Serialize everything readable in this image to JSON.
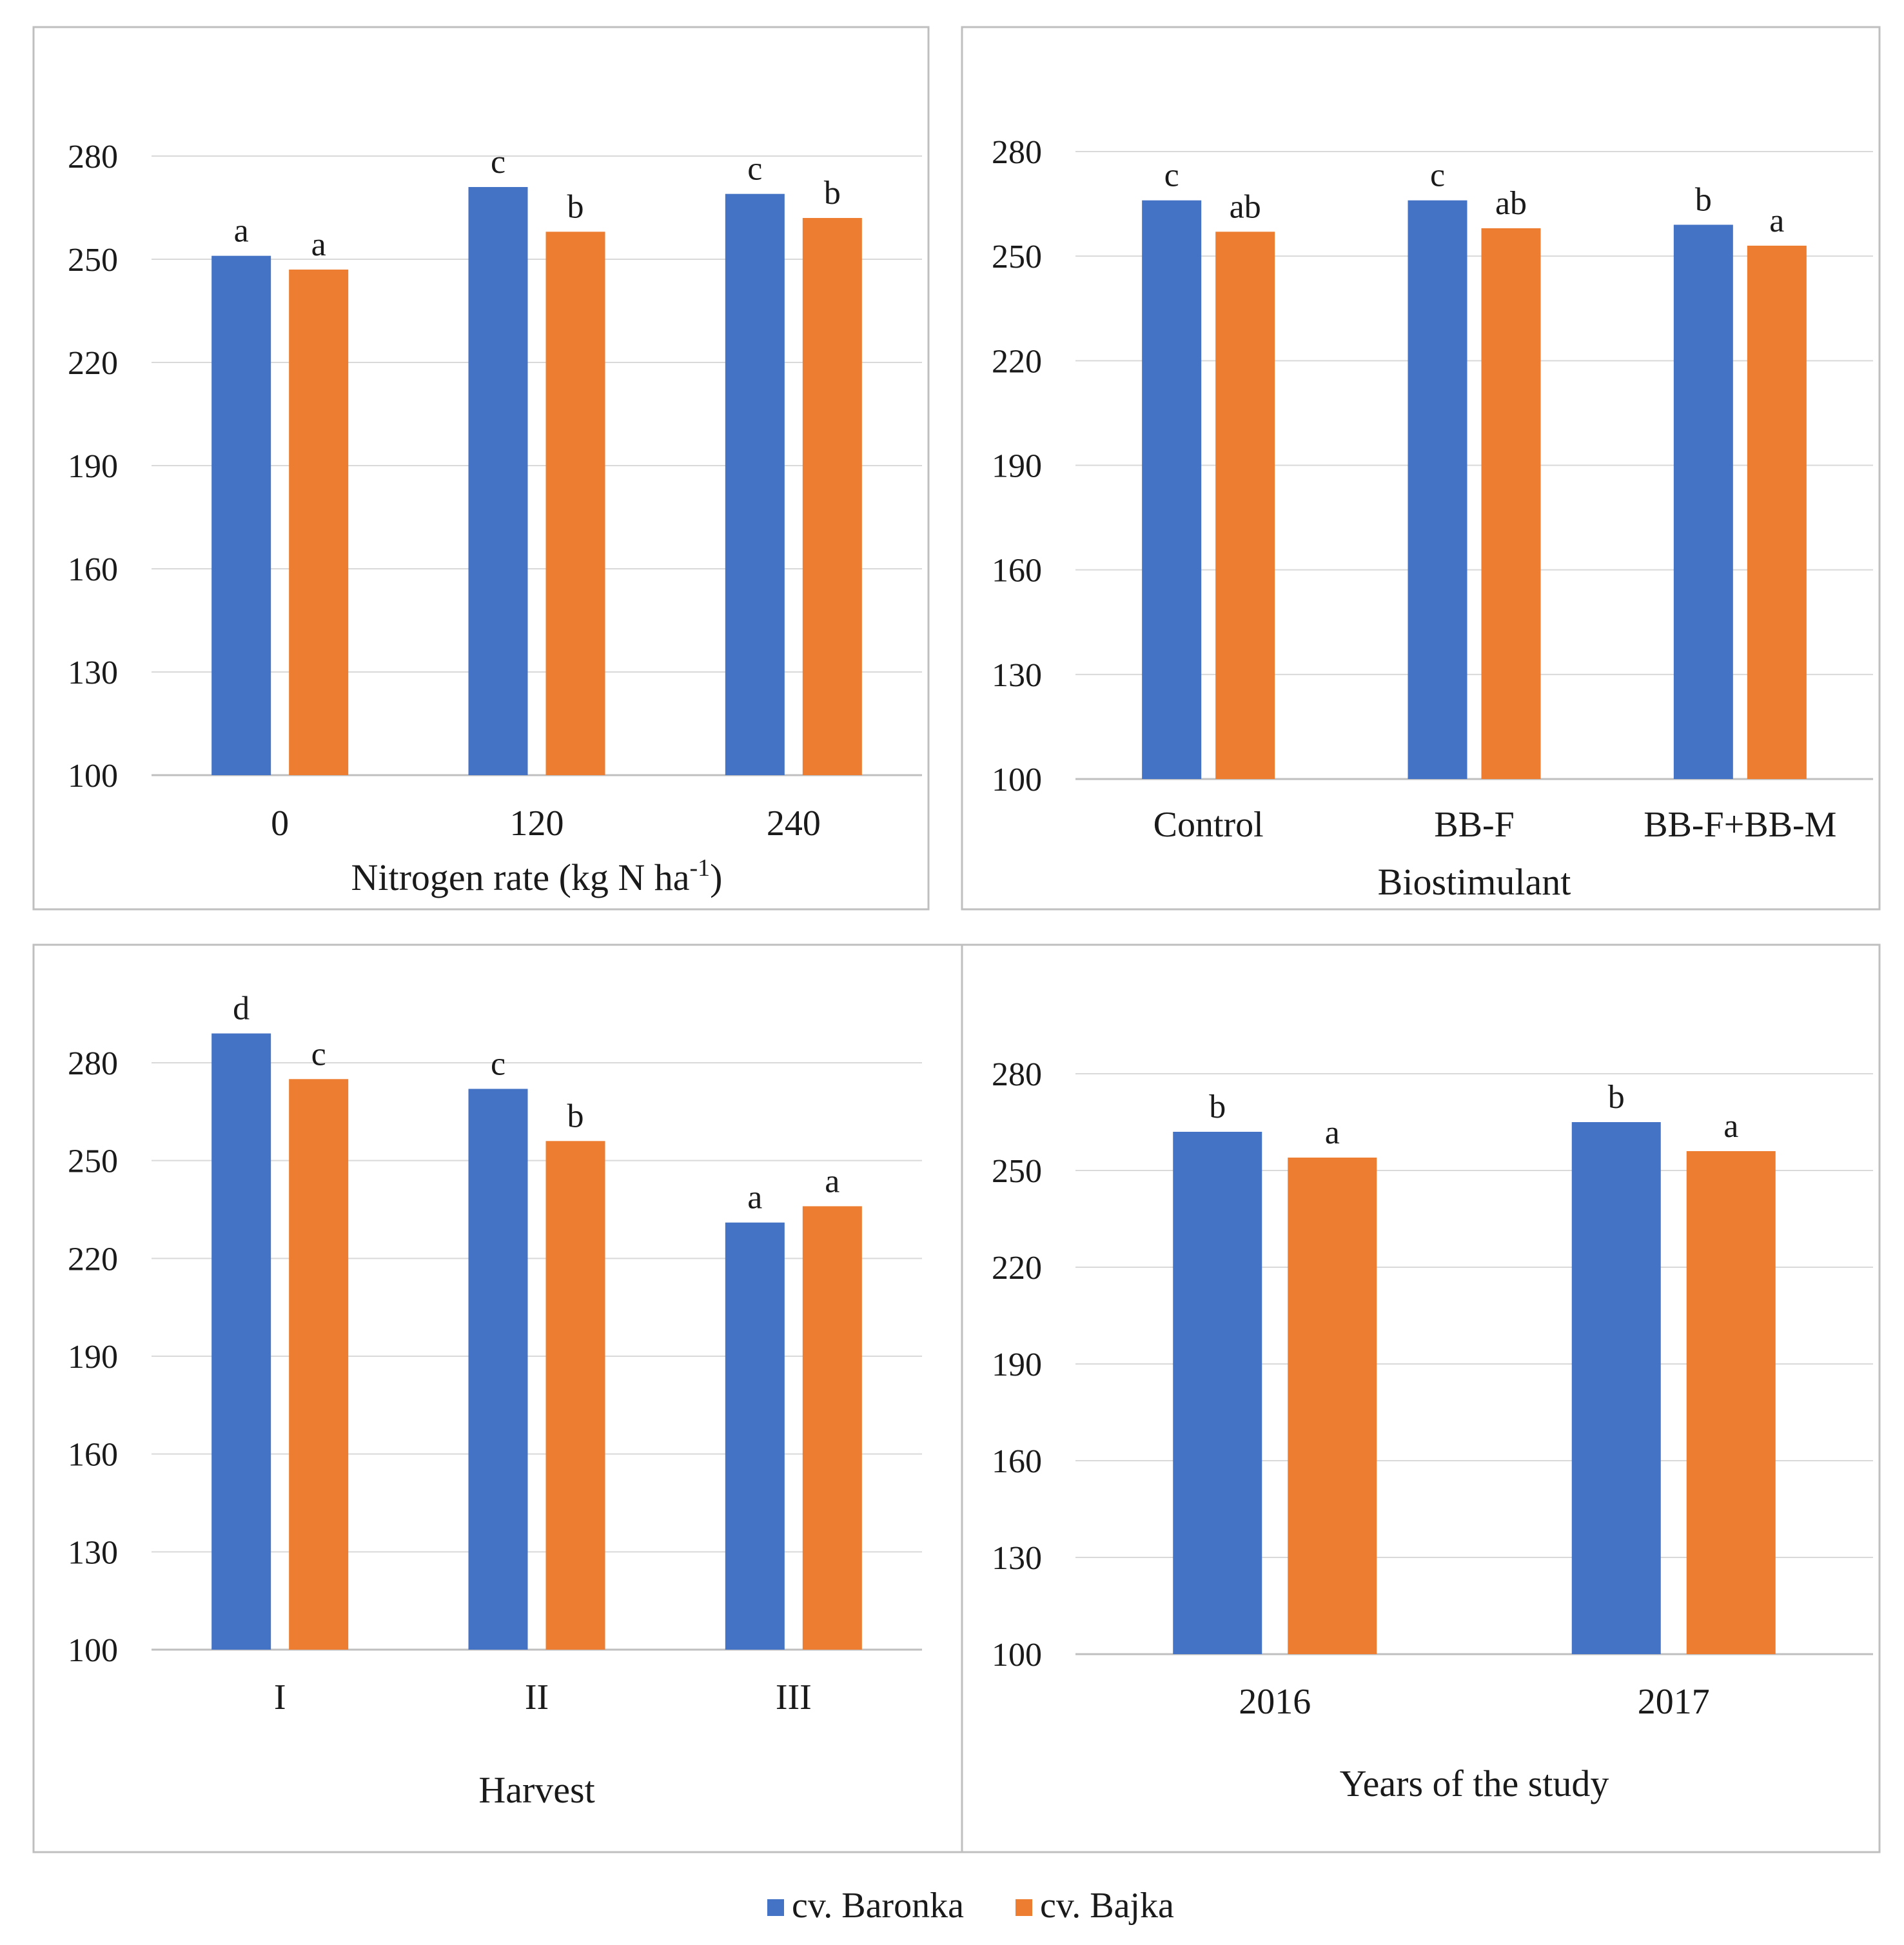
{
  "colors": {
    "baronka": "#4472c4",
    "bajka": "#ed7d31",
    "grid": "#d9d9d9",
    "frame": "#bfbfbf"
  },
  "legend": [
    {
      "name": "cv. Baronka",
      "color": "#4472c4"
    },
    {
      "name": "cv. Bajka",
      "color": "#ed7d31"
    }
  ],
  "chart_data": [
    {
      "type": "bar",
      "xlabel": "Nitrogen rate (kg N ha",
      "xlabel_sup": "-1",
      "xlabel_tail": ")",
      "ylim": [
        100,
        280
      ],
      "yticks": [
        100,
        130,
        160,
        190,
        220,
        250,
        280
      ],
      "categories": [
        "0",
        "120",
        "240"
      ],
      "series": [
        {
          "name": "cv. Baronka",
          "values": [
            251,
            271,
            269
          ],
          "labels": [
            "a",
            "c",
            "c"
          ]
        },
        {
          "name": "cv. Bajka",
          "values": [
            247,
            258,
            262
          ],
          "labels": [
            "a",
            "b",
            "b"
          ]
        }
      ]
    },
    {
      "type": "bar",
      "xlabel": "Biostimulant",
      "ylim": [
        100,
        280
      ],
      "yticks": [
        100,
        130,
        160,
        190,
        220,
        250,
        280
      ],
      "categories": [
        "Control",
        "BB-F",
        "BB-F+BB-M"
      ],
      "series": [
        {
          "name": "cv. Baronka",
          "values": [
            266,
            266,
            259
          ],
          "labels": [
            "c",
            "c",
            "b"
          ]
        },
        {
          "name": "cv. Bajka",
          "values": [
            257,
            258,
            253
          ],
          "labels": [
            "ab",
            "ab",
            "a"
          ]
        }
      ]
    },
    {
      "type": "bar",
      "xlabel": "Harvest",
      "ylim": [
        100,
        280
      ],
      "yticks": [
        100,
        130,
        160,
        190,
        220,
        250,
        280
      ],
      "categories": [
        "I",
        "II",
        "III"
      ],
      "series": [
        {
          "name": "cv. Baronka",
          "values": [
            289,
            272,
            231
          ],
          "labels": [
            "d",
            "c",
            "a"
          ]
        },
        {
          "name": "cv. Bajka",
          "values": [
            275,
            256,
            236
          ],
          "labels": [
            "c",
            "b",
            "a"
          ]
        }
      ]
    },
    {
      "type": "bar",
      "xlabel": "Years of the study",
      "ylim": [
        100,
        280
      ],
      "yticks": [
        100,
        130,
        160,
        190,
        220,
        250,
        280
      ],
      "categories": [
        "2016",
        "2017"
      ],
      "series": [
        {
          "name": "cv. Baronka",
          "values": [
            262,
            265
          ],
          "labels": [
            "b",
            "b"
          ]
        },
        {
          "name": "cv. Bajka",
          "values": [
            254,
            256
          ],
          "labels": [
            "a",
            "a"
          ]
        }
      ]
    }
  ]
}
